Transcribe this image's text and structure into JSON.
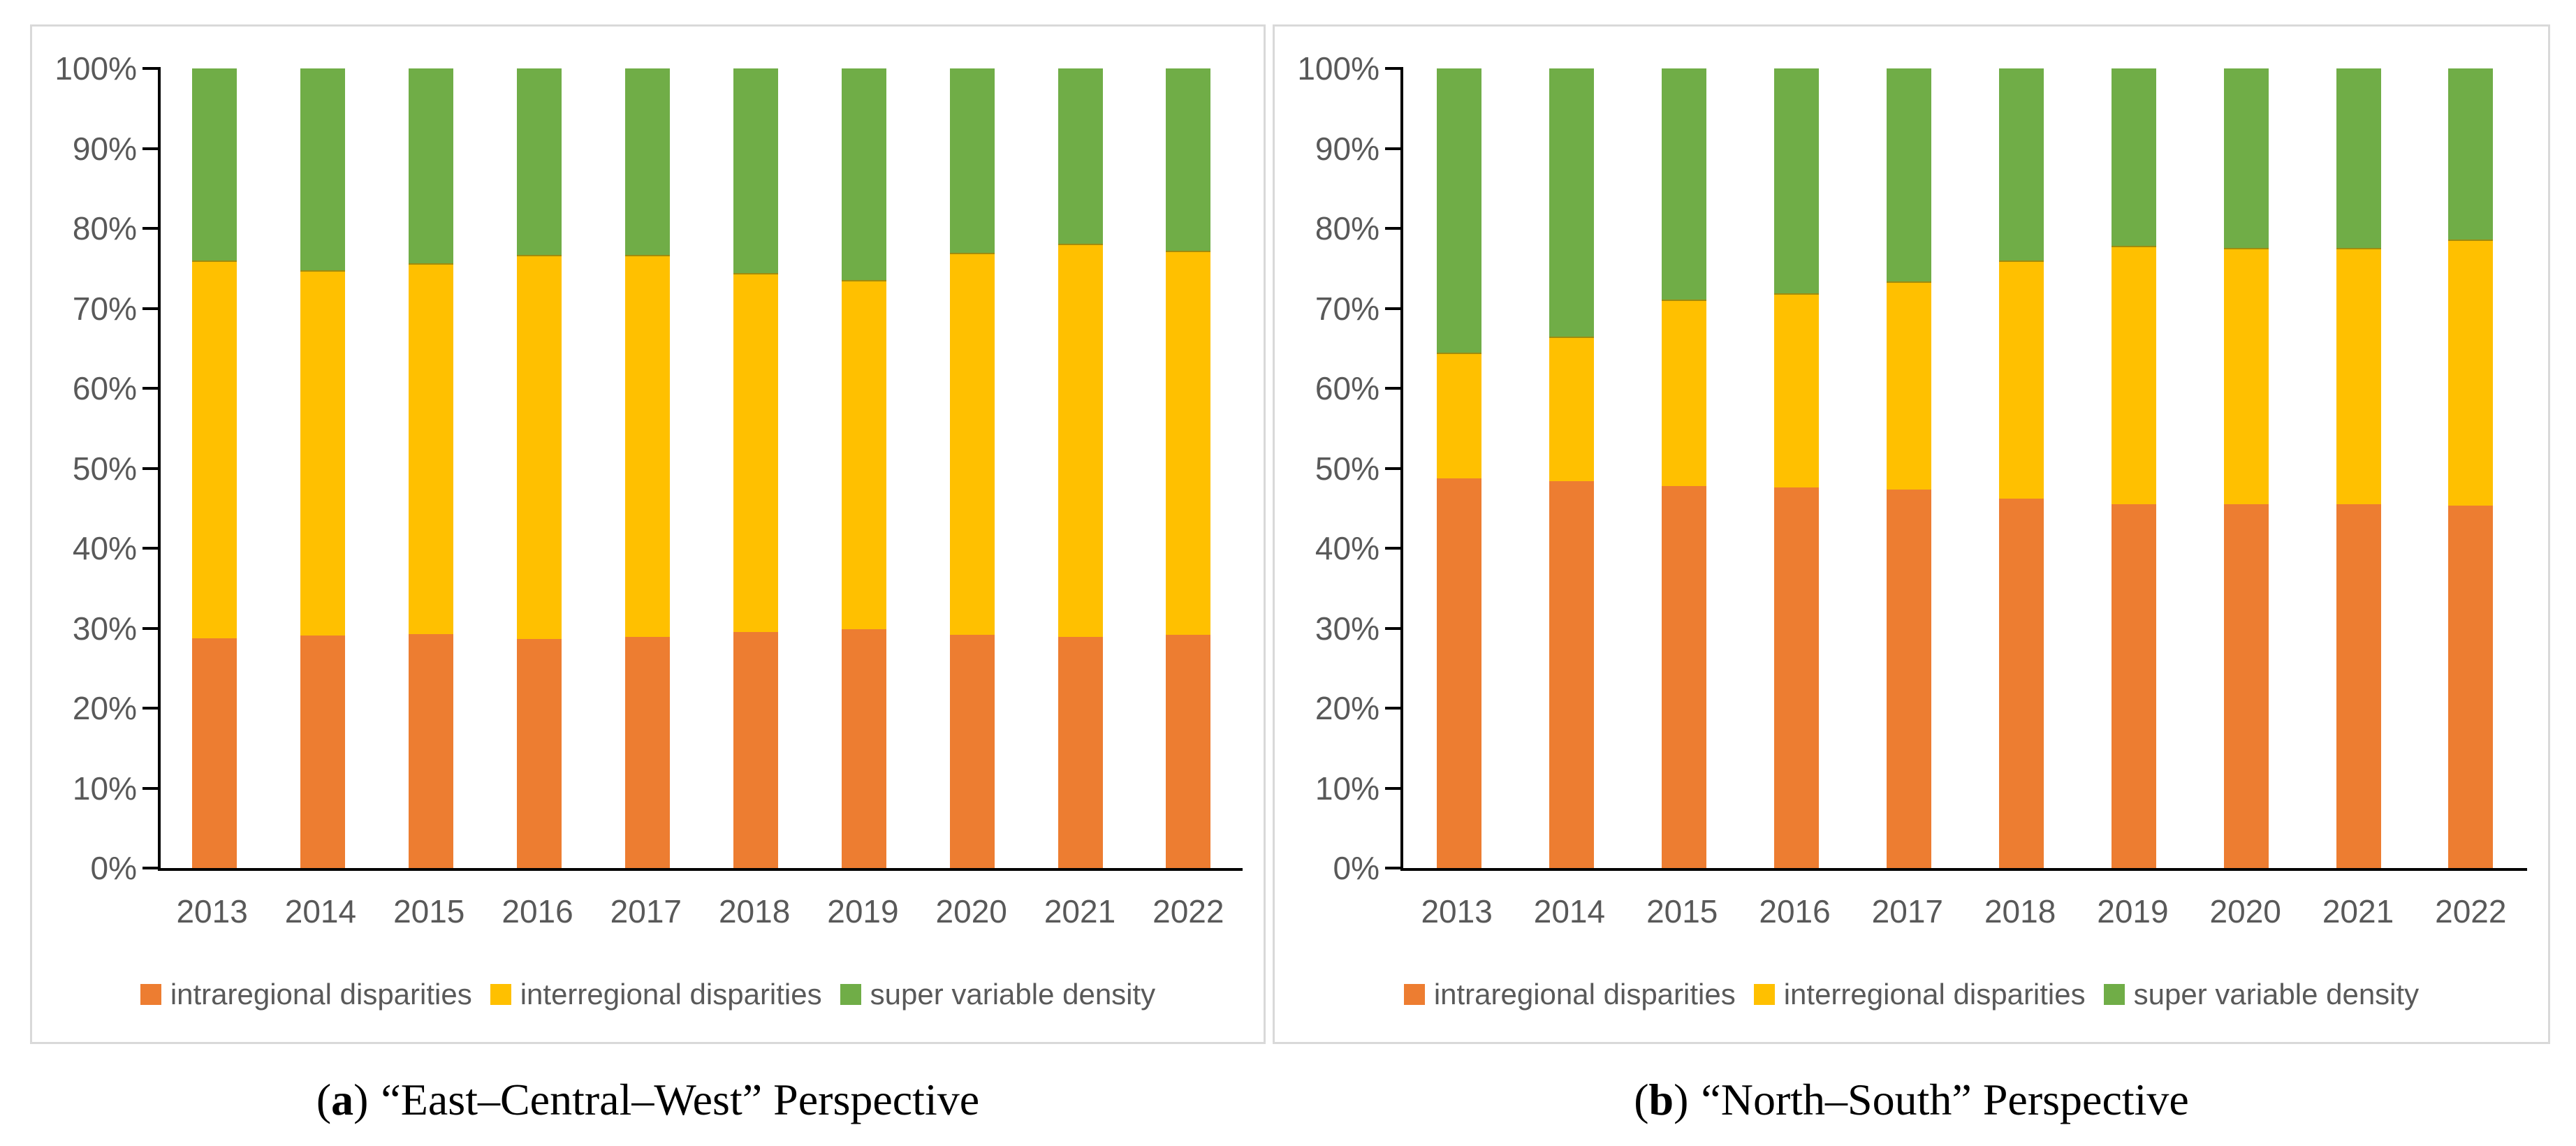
{
  "figure": {
    "y_axis": {
      "tick_labels": [
        "100%",
        "90%",
        "80%",
        "70%",
        "60%",
        "50%",
        "40%",
        "30%",
        "20%",
        "10%",
        "0%"
      ]
    },
    "colors": {
      "intraregional": "#ED7D31",
      "interregional": "#FFC000",
      "super_variable_density": "#70AD47",
      "axis_text": "#595959",
      "axis_line": "#000000",
      "panel_border": "#D9D9D9"
    }
  },
  "chart_data": [
    {
      "type": "bar",
      "stacked": true,
      "title": "(a) “East–Central–West” Perspective",
      "unit": "%",
      "ylim": [
        0,
        100
      ],
      "grid": false,
      "legend_position": "bottom",
      "categories": [
        "2013",
        "2014",
        "2015",
        "2016",
        "2017",
        "2018",
        "2019",
        "2020",
        "2021",
        "2022"
      ],
      "series": [
        {
          "key": "intraregional",
          "name": "intraregional disparities",
          "color": "#ED7D31",
          "values": [
            28.8,
            29.1,
            29.3,
            28.7,
            29.0,
            29.6,
            29.9,
            29.2,
            29.0,
            29.2
          ]
        },
        {
          "key": "interregional",
          "name": "interregional disparities",
          "color": "#FFC000",
          "values": [
            47.1,
            45.6,
            46.3,
            47.9,
            47.6,
            44.8,
            43.6,
            47.7,
            49.0,
            48.0
          ]
        },
        {
          "key": "super-variable-density",
          "name": "super variable density",
          "color": "#70AD47",
          "values": [
            24.1,
            25.3,
            24.4,
            23.4,
            23.4,
            25.6,
            26.5,
            23.1,
            22.0,
            22.8
          ]
        }
      ]
    },
    {
      "type": "bar",
      "stacked": true,
      "title": "(b) “North–South” Perspective",
      "unit": "%",
      "ylim": [
        0,
        100
      ],
      "grid": false,
      "legend_position": "bottom",
      "categories": [
        "2013",
        "2014",
        "2015",
        "2016",
        "2017",
        "2018",
        "2019",
        "2020",
        "2021",
        "2022"
      ],
      "series": [
        {
          "key": "intraregional",
          "name": "intraregional disparities",
          "color": "#ED7D31",
          "values": [
            48.8,
            48.5,
            47.9,
            47.7,
            47.4,
            46.3,
            45.6,
            45.6,
            45.6,
            45.4
          ]
        },
        {
          "key": "interregional",
          "name": "interregional disparities",
          "color": "#FFC000",
          "values": [
            15.6,
            17.9,
            23.1,
            24.1,
            25.9,
            29.6,
            32.2,
            31.9,
            31.9,
            33.2
          ]
        },
        {
          "key": "super-variable-density",
          "name": "super variable density",
          "color": "#70AD47",
          "values": [
            35.6,
            33.6,
            29.0,
            28.2,
            26.7,
            24.1,
            22.2,
            22.5,
            22.5,
            21.4
          ]
        }
      ]
    }
  ],
  "captions": [
    {
      "open": "(",
      "label": "a",
      "close": ")",
      "text": "“East–Central–West” Perspective"
    },
    {
      "open": "(",
      "label": "b",
      "close": ")",
      "text": "“North–South” Perspective"
    }
  ]
}
